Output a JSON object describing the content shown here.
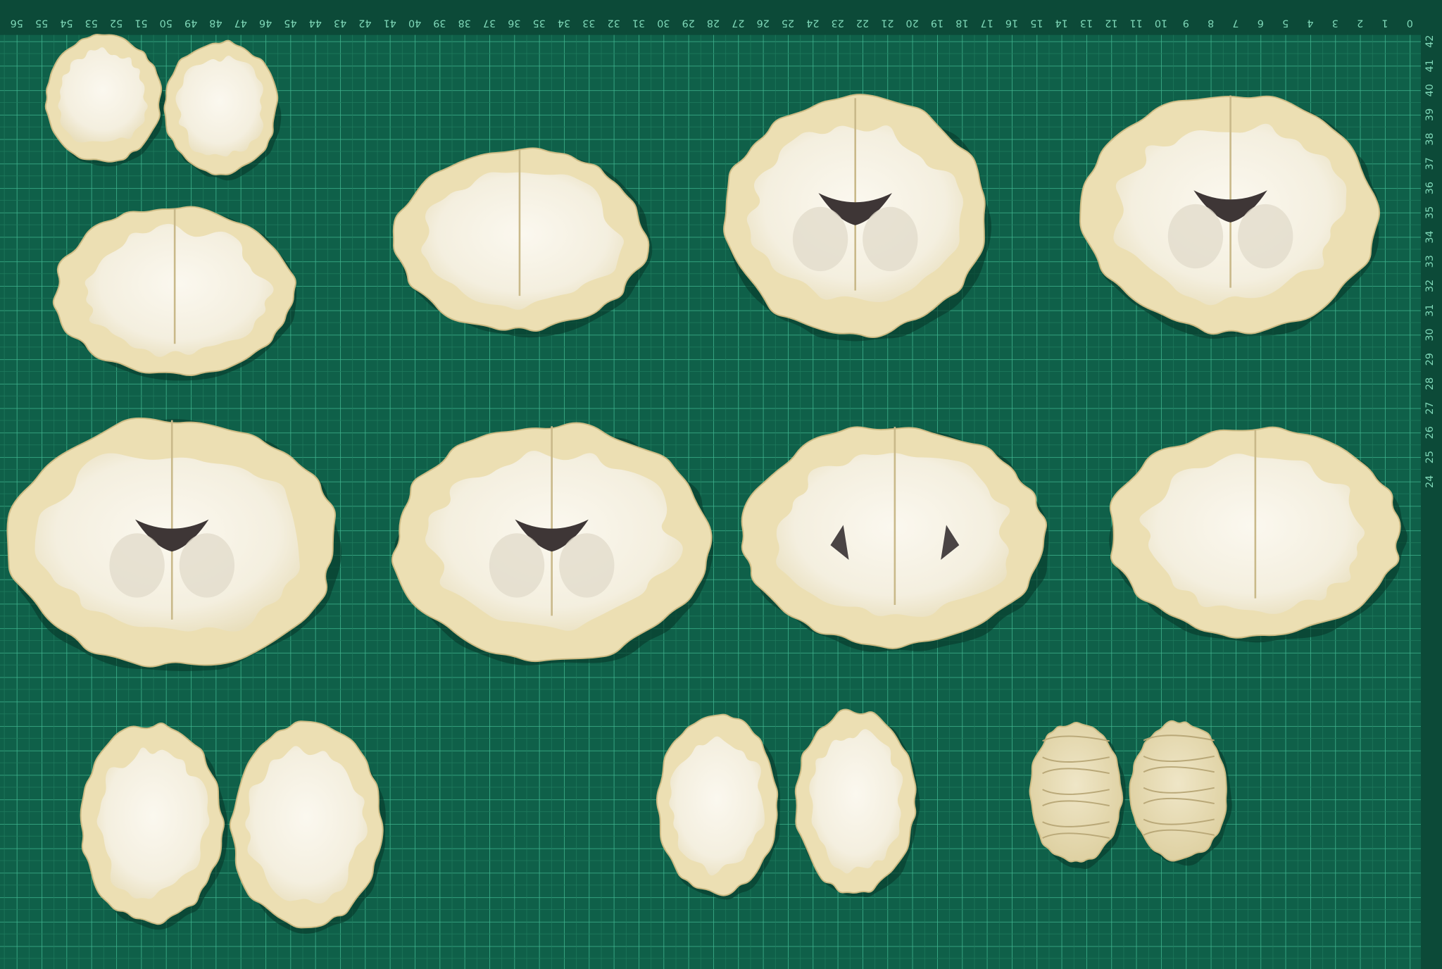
{
  "ruler_top": {
    "labels": [
      0,
      1,
      2,
      3,
      4,
      5,
      6,
      7,
      8,
      9,
      10,
      11,
      12,
      13,
      14,
      15,
      16,
      17,
      18,
      19,
      20,
      21,
      22,
      23,
      24,
      25,
      26,
      27,
      28,
      29,
      30,
      31,
      32,
      33,
      34,
      35,
      36,
      37,
      38,
      39,
      40,
      41,
      42,
      43,
      44,
      45,
      46,
      47,
      48,
      49,
      50,
      51,
      52,
      53,
      54,
      55,
      56
    ]
  },
  "ruler_right": {
    "labels": [
      42,
      41,
      40,
      39,
      38,
      37,
      36,
      35,
      34,
      33,
      32,
      31,
      30,
      29,
      28,
      27,
      26,
      25,
      24
    ]
  }
}
